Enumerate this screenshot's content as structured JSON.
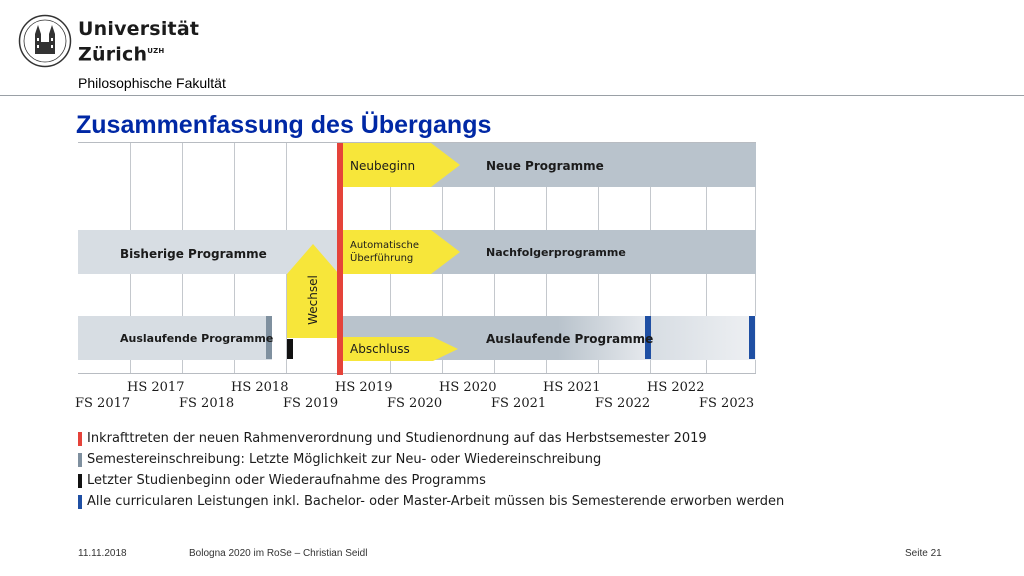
{
  "header": {
    "university_line1": "Universität",
    "university_line2": "Zürich",
    "university_sup": "UZH",
    "faculty": "Philosophische Fakultät"
  },
  "slide": {
    "title": "Zusammenfassung des Übergangs"
  },
  "diagram": {
    "labels": {
      "neubeginn": "Neubeginn",
      "neue_programme": "Neue Programme",
      "bisherige_programme": "Bisherige Programme",
      "automatische_line1": "Automatische",
      "automatische_line2": "Überführung",
      "nachfolgerprogramme": "Nachfolgerprogramme",
      "wechsel": "Wechsel",
      "auslaufende_left": "Auslaufende Programme",
      "auslaufende_right": "Auslaufende Programme",
      "abschluss": "Abschluss"
    },
    "hs_semesters": [
      "HS 2017",
      "HS 2018",
      "HS 2019",
      "HS 2020",
      "HS 2021",
      "HS 2022"
    ],
    "fs_semesters": [
      "FS 2017",
      "FS 2018",
      "FS 2019",
      "FS 2020",
      "FS 2021",
      "FS 2022",
      "FS 2023"
    ]
  },
  "legend": [
    {
      "color": "#e5433a",
      "text": "Inkrafttreten der neuen Rahmenverordnung und Studienordnung auf das Herbstsemester 2019"
    },
    {
      "color": "#7f909f",
      "text": "Semestereinschreibung: Letzte Möglichkeit zur Neu- oder Wiedereinschreibung"
    },
    {
      "color": "#111111",
      "text": "Letzter Studienbeginn oder Wiederaufnahme des Programms"
    },
    {
      "color": "#1f4fa3",
      "text": "Alle curricularen Leistungen inkl. Bachelor- oder Master-Arbeit müssen bis Semesterende erworben werden"
    }
  ],
  "footer": {
    "date": "11.11.2018",
    "center": "Bologna 2020 im RoSe – Christian Seidl",
    "page": "Seite 21"
  },
  "colors": {
    "title": "#0028a5",
    "red": "#e5433a",
    "yellow": "#f7e63a",
    "blue": "#1f4fa3",
    "grey_marker": "#7f909f"
  }
}
